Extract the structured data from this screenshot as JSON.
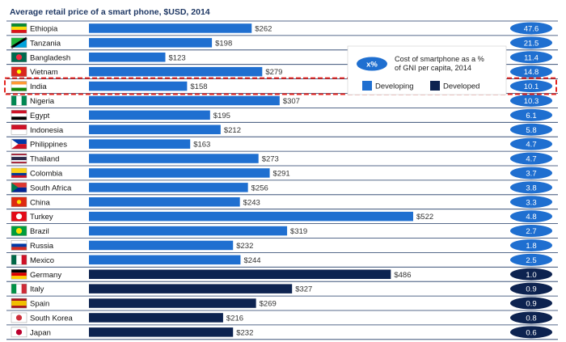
{
  "chart_data": {
    "type": "bar",
    "orientation": "horizontal",
    "title": "Average retail price of a smart phone, $USD, 2014",
    "value_prefix": "$",
    "categories": [
      "Ethiopia",
      "Tanzania",
      "Bangladesh",
      "Vietnam",
      "India",
      "Nigeria",
      "Egypt",
      "Indonesia",
      "Philippines",
      "Thailand",
      "Colombia",
      "South Africa",
      "China",
      "Turkey",
      "Brazil",
      "Russia",
      "Mexico",
      "Germany",
      "Italy",
      "Spain",
      "South Korea",
      "Japan"
    ],
    "values": [
      262,
      198,
      123,
      279,
      158,
      307,
      195,
      212,
      163,
      273,
      291,
      256,
      243,
      522,
      319,
      232,
      244,
      486,
      327,
      269,
      216,
      232
    ],
    "group": [
      "Developing",
      "Developing",
      "Developing",
      "Developing",
      "Developing",
      "Developing",
      "Developing",
      "Developing",
      "Developing",
      "Developing",
      "Developing",
      "Developing",
      "Developing",
      "Developing",
      "Developing",
      "Developing",
      "Developing",
      "Developed",
      "Developed",
      "Developed",
      "Developed",
      "Developed"
    ],
    "gni_percent": [
      "47.6",
      "21.5",
      "11.4",
      "14.8",
      "10.1",
      "10.3",
      "6.1",
      "5.8",
      "4.7",
      "4.7",
      "3.7",
      "3.8",
      "3.3",
      "4.8",
      "2.7",
      "1.8",
      "2.5",
      "1.0",
      "0.9",
      "0.9",
      "0.8",
      "0.6"
    ],
    "highlight": "India",
    "colors": {
      "Developing": "#1f6fd0",
      "Developed": "#0d2350",
      "gridline": "#1f3864"
    },
    "legend": {
      "placement": "top-right",
      "badge_text": "x%",
      "description": [
        "Cost of smartphone as a %",
        "of GNI per capita, 2014"
      ],
      "entries": [
        "Developing",
        "Developed"
      ]
    },
    "xlim": [
      0,
      560
    ]
  }
}
